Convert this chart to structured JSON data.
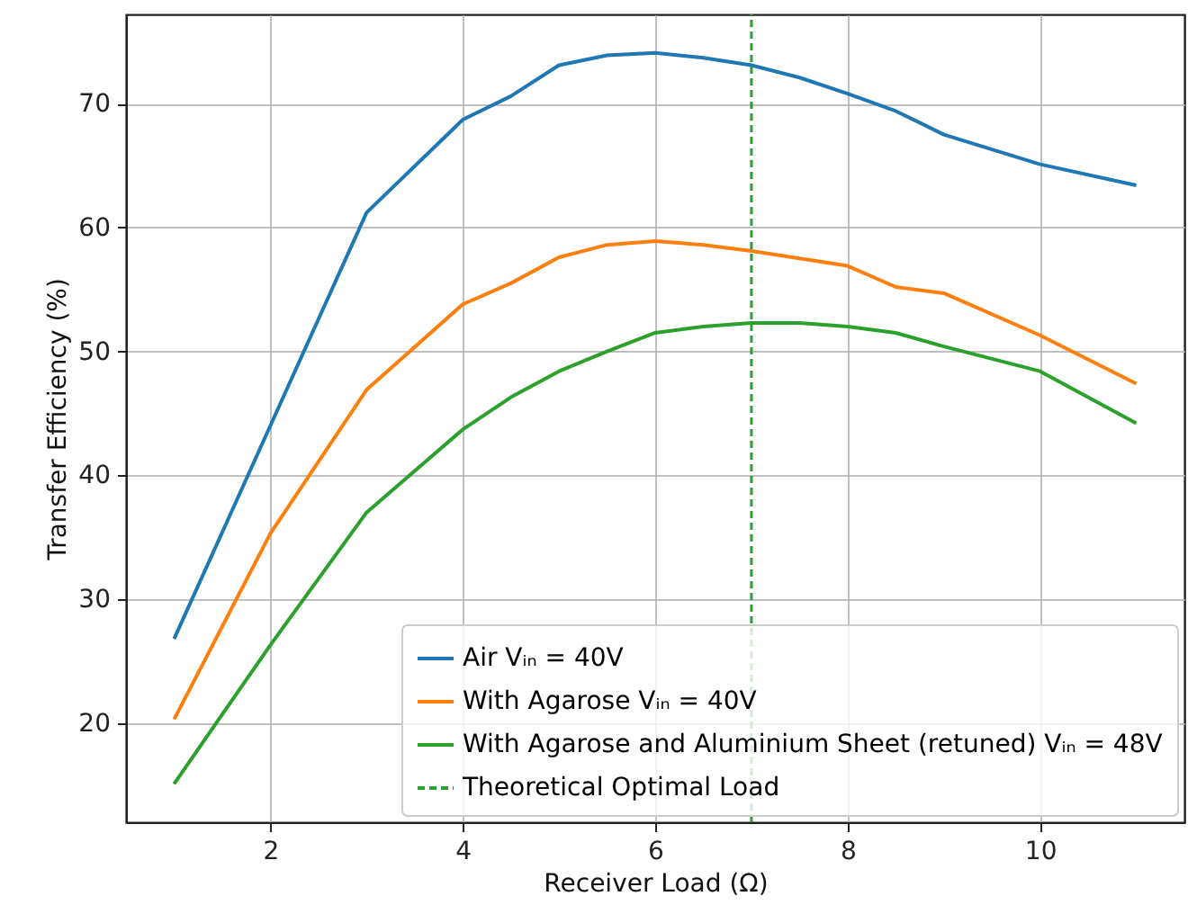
{
  "chart_data": {
    "type": "line",
    "xlabel": "Receiver Load (Ω)",
    "ylabel": "Transfer Efficiency (%)",
    "x": [
      1,
      2,
      3,
      4,
      4.5,
      5,
      5.5,
      6,
      6.5,
      7,
      7.5,
      8,
      8.5,
      9,
      10,
      11
    ],
    "series": [
      {
        "name": "Air Vᵢₙ = 40V",
        "color": "#1f77b4",
        "values": [
          26.8,
          44.0,
          61.2,
          68.7,
          70.6,
          73.1,
          73.9,
          74.1,
          73.7,
          73.1,
          72.1,
          70.8,
          69.4,
          67.5,
          65.1,
          63.4
        ]
      },
      {
        "name": "With Agarose Vᵢₙ = 40V",
        "color": "#ff7f0e",
        "values": [
          20.3,
          35.3,
          46.9,
          53.8,
          55.5,
          57.6,
          58.6,
          58.9,
          58.6,
          58.1,
          57.5,
          56.9,
          55.2,
          54.7,
          51.3,
          47.4
        ]
      },
      {
        "name": "With Agarose and Aluminium Sheet (retuned) Vᵢₙ = 48V",
        "color": "#2ca02c",
        "values": [
          15.1,
          26.3,
          37.0,
          43.7,
          46.3,
          48.4,
          50.0,
          51.5,
          52.0,
          52.3,
          52.3,
          52.0,
          51.5,
          50.4,
          48.4,
          44.2
        ]
      }
    ],
    "ref_lines": [
      {
        "axis": "x",
        "value": 7,
        "label": "Theoretical Optimal Load",
        "color": "#2ca02c",
        "line_style": "dashed"
      }
    ],
    "xlim": [
      0.5,
      11.5
    ],
    "ylim": [
      12,
      77.2
    ],
    "xticks": [
      2,
      4,
      6,
      8,
      10
    ],
    "yticks": [
      20,
      30,
      40,
      50,
      60,
      70
    ],
    "grid": true,
    "legend": "bottom right",
    "line_style": "solid"
  }
}
